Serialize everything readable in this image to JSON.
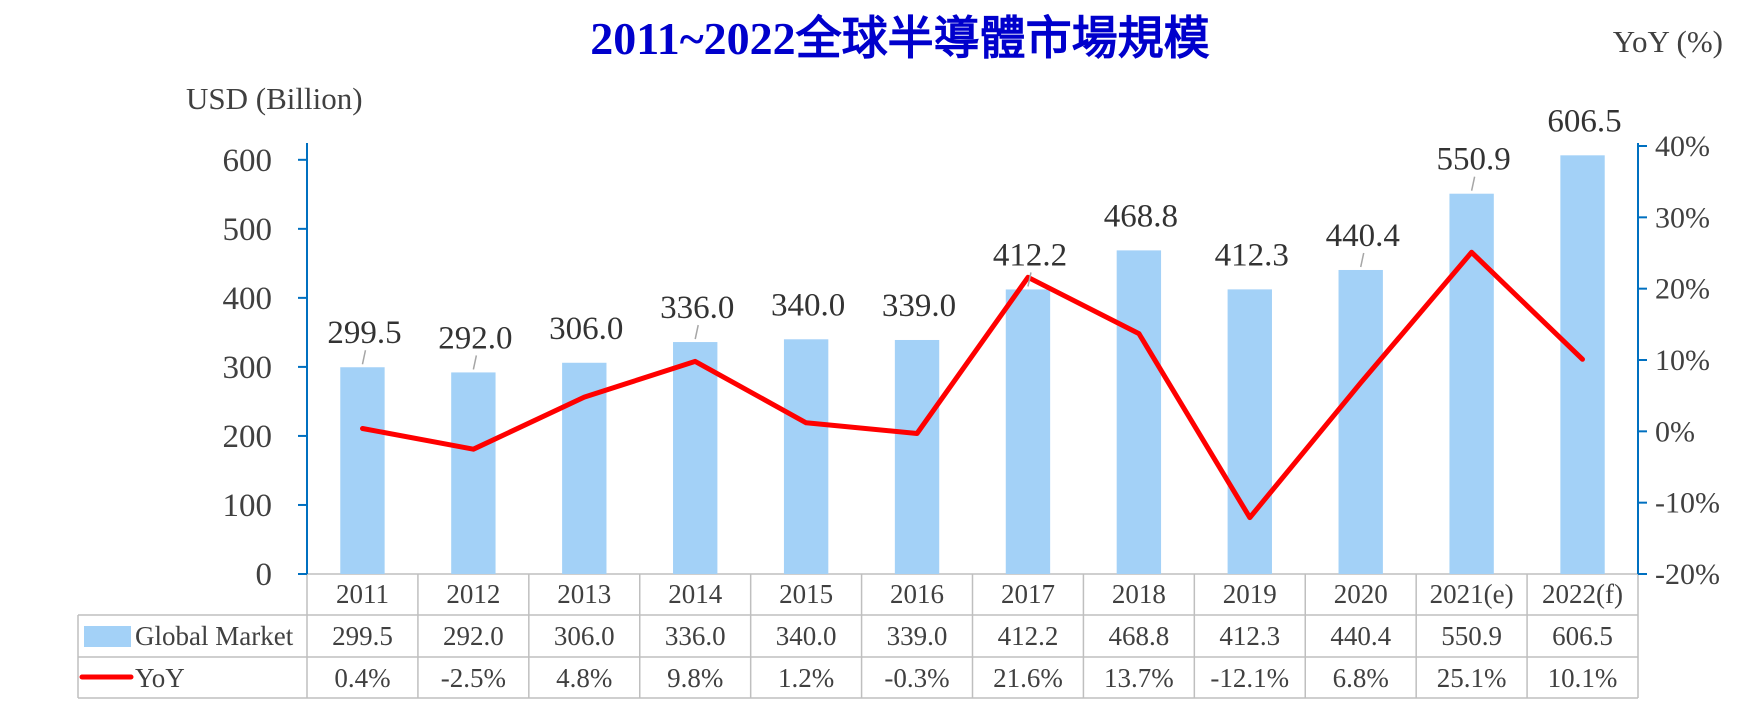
{
  "colors": {
    "title": "#0000CC",
    "bar": "#A3D1F7",
    "line": "#FF0000",
    "axis": "#0070C0",
    "table_border": "#BFBFBF"
  },
  "chart_data": {
    "type": "bar",
    "title": "2011~2022全球半導體市場規模",
    "xlabel": "",
    "ylabel": "USD (Billion)",
    "y2label": "YoY (%)",
    "categories": [
      "2011",
      "2012",
      "2013",
      "2014",
      "2015",
      "2016",
      "2017",
      "2018",
      "2019",
      "2020",
      "2021(e)",
      "2022(f)"
    ],
    "series": [
      {
        "name": "Global Market",
        "type": "bar",
        "axis": "left",
        "values": [
          299.5,
          292.0,
          306.0,
          336.0,
          340.0,
          339.0,
          412.2,
          468.8,
          412.3,
          440.4,
          550.9,
          606.5
        ],
        "labels": [
          "299.5",
          "292.0",
          "306.0",
          "336.0",
          "340.0",
          "339.0",
          "412.2",
          "468.8",
          "412.3",
          "440.4",
          "550.9",
          "606.5"
        ]
      },
      {
        "name": "YoY",
        "type": "line",
        "axis": "right",
        "values": [
          0.4,
          -2.5,
          4.8,
          9.8,
          1.2,
          -0.3,
          21.6,
          13.7,
          -12.1,
          6.8,
          25.1,
          10.1
        ],
        "labels": [
          "0.4%",
          "-2.5%",
          "4.8%",
          "9.8%",
          "1.2%",
          "-0.3%",
          "21.6%",
          "13.7%",
          "-12.1%",
          "6.8%",
          "25.1%",
          "10.1%"
        ]
      }
    ],
    "ylim": [
      0,
      620
    ],
    "y2lim": [
      -20,
      40
    ],
    "yticks": [
      "0",
      "100",
      "200",
      "300",
      "400",
      "500",
      "600"
    ],
    "y2ticks": [
      "-20%",
      "-10%",
      "0%",
      "10%",
      "20%",
      "30%",
      "40%"
    ],
    "grid": false,
    "data_table": true,
    "legend": "bottom"
  }
}
